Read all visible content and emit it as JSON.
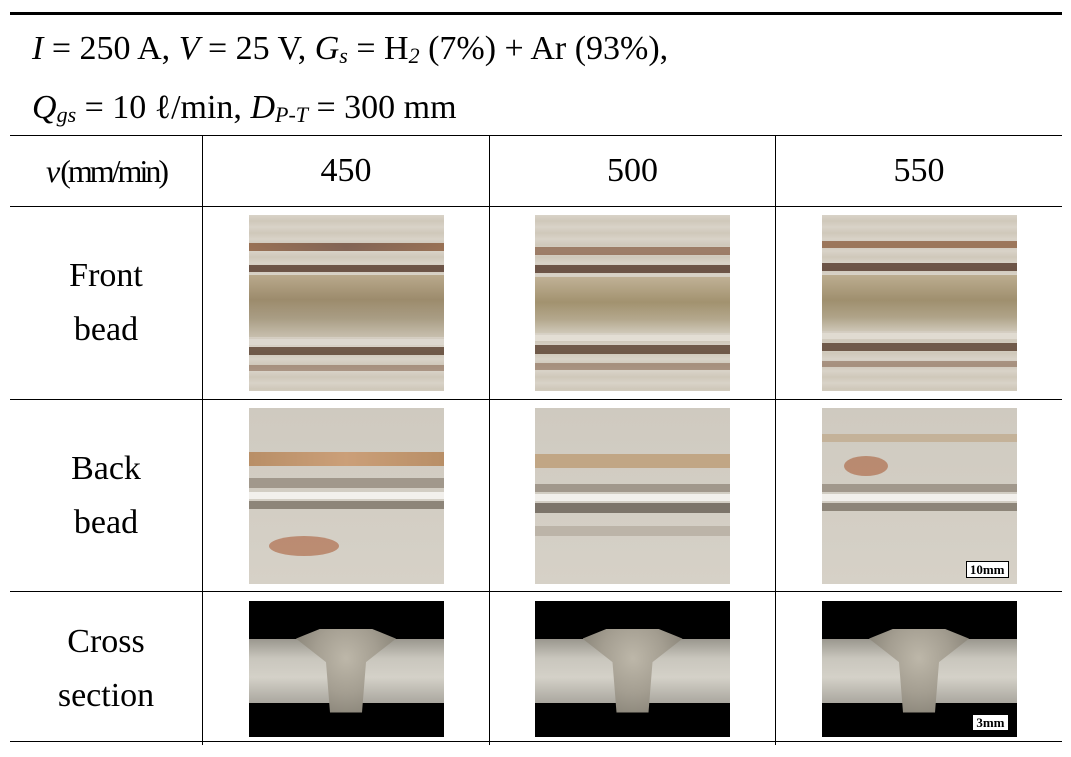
{
  "header": {
    "line1": {
      "i_sym": "I",
      "i_val": " = 250 A, ",
      "v_sym": "V",
      "v_val": " = 25 V, ",
      "g_sym": "G",
      "g_sub": "s",
      "g_val": " = H",
      "h2_sub": "2",
      "g_rest": " (7%) + Ar (93%),"
    },
    "line2": {
      "q_sym": "Q",
      "q_sub": "gs",
      "q_val": " = 10 ℓ/min, ",
      "d_sym": "D",
      "d_sub": "P-T",
      "d_val": " = 300 mm"
    }
  },
  "speed_row": {
    "label_sym": "v",
    "label_unit": "(mm/min)",
    "values": [
      "450",
      "500",
      "550"
    ]
  },
  "rows": [
    {
      "label_line1": "Front",
      "label_line2": "bead"
    },
    {
      "label_line1": "Back",
      "label_line2": "bead",
      "scale_label": "10mm"
    },
    {
      "label_line1": "Cross",
      "label_line2": "section",
      "scale_label": "3mm"
    }
  ]
}
